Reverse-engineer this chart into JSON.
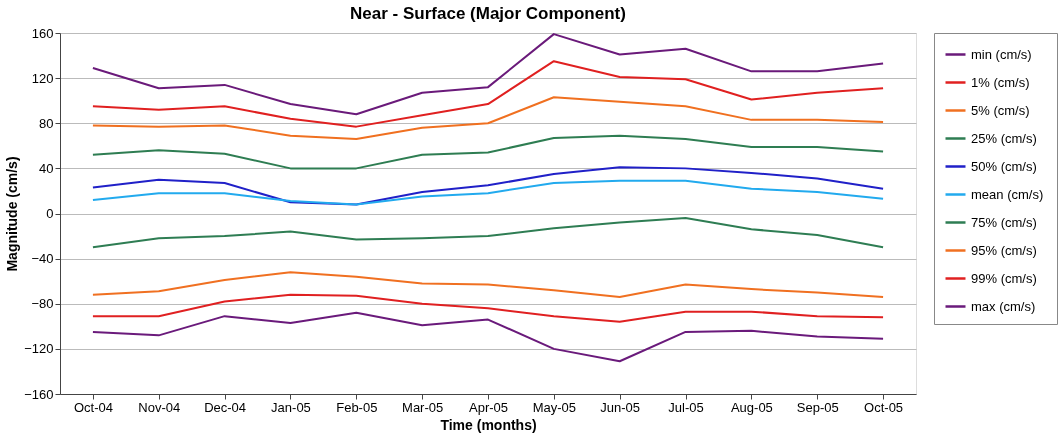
{
  "chart_data": {
    "type": "line",
    "title": "Near - Surface (Major Component)",
    "xlabel": "Time (months)",
    "ylabel": "Magnitude (cm/s)",
    "categories": [
      "Oct-04",
      "Nov-04",
      "Dec-04",
      "Jan-05",
      "Feb-05",
      "Mar-05",
      "Apr-05",
      "May-05",
      "Jun-05",
      "Jul-05",
      "Aug-05",
      "Sep-05",
      "Oct-05"
    ],
    "ylim": [
      -160,
      160
    ],
    "yticks": [
      -160,
      -120,
      -80,
      -40,
      0,
      40,
      80,
      120,
      160
    ],
    "grid": "y",
    "legend": "right",
    "marker": "none",
    "line_style": "solid",
    "series": [
      {
        "name": "min (cm/s)",
        "color": "#6a1a7a",
        "values": [
          129,
          111,
          114,
          97,
          88,
          107,
          112,
          159,
          141,
          146,
          126,
          126,
          133
        ]
      },
      {
        "name": "1%  (cm/s)",
        "color": "#e02020",
        "values": [
          95,
          92,
          95,
          84,
          77,
          87,
          97,
          135,
          121,
          119,
          101,
          107,
          111
        ]
      },
      {
        "name": "5%  (cm/s)",
        "color": "#f07020",
        "values": [
          78,
          77,
          78,
          69,
          66,
          76,
          80,
          103,
          99,
          95,
          83,
          83,
          81
        ]
      },
      {
        "name": "25%  (cm/s)",
        "color": "#2e7d52",
        "values": [
          52,
          56,
          53,
          40,
          40,
          52,
          54,
          67,
          69,
          66,
          59,
          59,
          55
        ]
      },
      {
        "name": "50%  (cm/s)",
        "color": "#2020c8",
        "values": [
          23,
          30,
          27,
          10,
          8,
          19,
          25,
          35,
          41,
          40,
          36,
          31,
          22
        ]
      },
      {
        "name": "mean  (cm/s)",
        "color": "#22aaee",
        "values": [
          12,
          18,
          18,
          11,
          8,
          15,
          18,
          27,
          29,
          29,
          22,
          19,
          13
        ]
      },
      {
        "name": "75%  (cm/s)",
        "color": "#2e7d53",
        "values": [
          -30,
          -22,
          -20,
          -16,
          -23,
          -22,
          -20,
          -13,
          -8,
          -4,
          -14,
          -19,
          -30
        ]
      },
      {
        "name": "95%  (cm/s)",
        "color": "#f07021",
        "values": [
          -72,
          -69,
          -59,
          -52,
          -56,
          -62,
          -63,
          -68,
          -74,
          -63,
          -67,
          -70,
          -74
        ]
      },
      {
        "name": "99%  (cm/s)",
        "color": "#e02021",
        "values": [
          -91,
          -91,
          -78,
          -72,
          -73,
          -80,
          -84,
          -91,
          -96,
          -87,
          -87,
          -91,
          -92
        ]
      },
      {
        "name": "max  (cm/s)",
        "color": "#6a1a7b",
        "values": [
          -105,
          -108,
          -91,
          -97,
          -88,
          -99,
          -94,
          -120,
          -131,
          -105,
          -104,
          -109,
          -111
        ]
      }
    ]
  }
}
